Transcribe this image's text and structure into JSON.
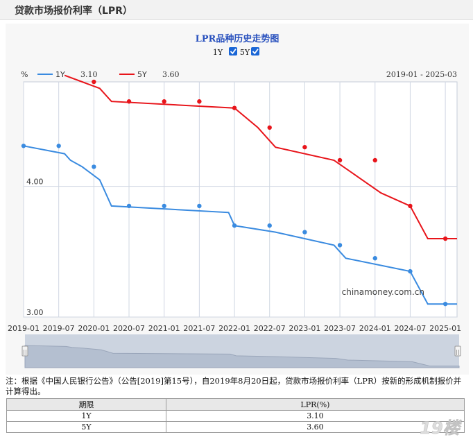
{
  "page": {
    "title": "贷款市场报价利率（LPR）"
  },
  "controls": {
    "chart_title": "LPR品种历史走势图",
    "toggles": [
      {
        "label": "1Y",
        "checked": true
      },
      {
        "label": "5Y",
        "checked": true
      }
    ],
    "unit": "%",
    "date_range": "2019-01 - 2025-03",
    "watermark_text": "chinamoney.com.cn"
  },
  "colors": {
    "series_1y": "#3a8be0",
    "series_5y": "#e8151b",
    "grid": "#cfd6e2"
  },
  "chart_data": {
    "type": "line",
    "title": "LPR品种历史走势图",
    "ylabel": "%",
    "x_ticks": [
      "2019-01",
      "2019-07",
      "2020-01",
      "2020-07",
      "2021-01",
      "2021-07",
      "2022-01",
      "2022-07",
      "2023-01",
      "2023-07",
      "2024-01",
      "2024-07",
      "2025-01"
    ],
    "y_ticks": [
      "4.00",
      "3.00"
    ],
    "x_range": [
      "2019-01",
      "2025-03"
    ],
    "ylim": [
      3.0,
      4.8
    ],
    "legend_position": "top-left",
    "series": [
      {
        "name": "1Y",
        "latest": "3.10",
        "steps": [
          [
            "2019-01",
            4.31
          ],
          [
            "2019-08",
            4.25
          ],
          [
            "2019-09",
            4.2
          ],
          [
            "2019-11",
            4.15
          ],
          [
            "2020-02",
            4.05
          ],
          [
            "2020-04",
            3.85
          ],
          [
            "2021-12",
            3.8
          ],
          [
            "2022-01",
            3.7
          ],
          [
            "2022-08",
            3.65
          ],
          [
            "2023-06",
            3.55
          ],
          [
            "2023-08",
            3.45
          ],
          [
            "2024-07",
            3.35
          ],
          [
            "2024-10",
            3.1
          ],
          [
            "2025-03",
            3.1
          ]
        ],
        "markers": [
          [
            "2019-01",
            4.31
          ],
          [
            "2019-07",
            4.31
          ],
          [
            "2020-01",
            4.15
          ],
          [
            "2020-07",
            3.85
          ],
          [
            "2021-01",
            3.85
          ],
          [
            "2021-07",
            3.85
          ],
          [
            "2022-01",
            3.7
          ],
          [
            "2022-07",
            3.7
          ],
          [
            "2023-01",
            3.65
          ],
          [
            "2023-07",
            3.55
          ],
          [
            "2024-01",
            3.45
          ],
          [
            "2024-07",
            3.35
          ],
          [
            "2025-01",
            3.1
          ]
        ]
      },
      {
        "name": "5Y",
        "latest": "3.60",
        "steps": [
          [
            "2019-08",
            4.85
          ],
          [
            "2019-11",
            4.8
          ],
          [
            "2020-02",
            4.75
          ],
          [
            "2020-04",
            4.65
          ],
          [
            "2022-01",
            4.6
          ],
          [
            "2022-05",
            4.45
          ],
          [
            "2022-08",
            4.3
          ],
          [
            "2023-06",
            4.2
          ],
          [
            "2024-02",
            3.95
          ],
          [
            "2024-07",
            3.85
          ],
          [
            "2024-10",
            3.6
          ],
          [
            "2025-03",
            3.6
          ]
        ],
        "markers": [
          [
            "2020-01",
            4.8
          ],
          [
            "2020-07",
            4.65
          ],
          [
            "2021-01",
            4.65
          ],
          [
            "2021-07",
            4.65
          ],
          [
            "2022-01",
            4.6
          ],
          [
            "2022-07",
            4.45
          ],
          [
            "2023-01",
            4.3
          ],
          [
            "2023-07",
            4.2
          ],
          [
            "2024-01",
            4.2
          ],
          [
            "2024-07",
            3.85
          ],
          [
            "2025-01",
            3.6
          ]
        ]
      }
    ]
  },
  "note": "注：根据《中国人民银行公告》（公告[2019]第15号），自2019年8月20日起，贷款市场报价利率（LPR）按新的形成机制报价并计算得出。",
  "table": {
    "headers": [
      "期限",
      "LPR(%)"
    ],
    "rows": [
      [
        "1Y",
        "3.10"
      ],
      [
        "5Y",
        "3.60"
      ]
    ]
  },
  "watermark": {
    "logo": "19楼"
  }
}
